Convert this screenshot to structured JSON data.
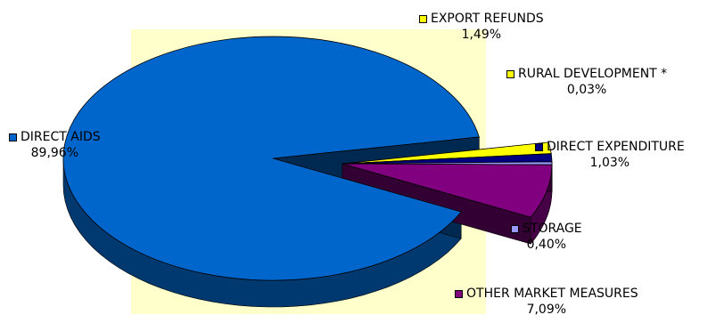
{
  "chart_data": {
    "type": "pie",
    "three_d": true,
    "exploded": true,
    "plot_area_color": "#FFFFCC",
    "slices": [
      {
        "name": "DIRECT AIDS",
        "value": 89.96,
        "label": "89,96%",
        "color": "#0066CC"
      },
      {
        "name": "OTHER MARKET MEASURES",
        "value": 7.09,
        "label": "7,09%",
        "color": "#800080"
      },
      {
        "name": "STORAGE",
        "value": 0.4,
        "label": "0,40%",
        "color": "#9999FF"
      },
      {
        "name": "DIRECT EXPENDITURE",
        "value": 1.03,
        "label": "1,03%",
        "color": "#000080"
      },
      {
        "name": "RURAL DEVELOPMENT *",
        "value": 0.03,
        "label": "0,03%",
        "color": "#FFFF00"
      },
      {
        "name": "EXPORT REFUNDS",
        "value": 1.49,
        "label": "1,49%",
        "color": "#FFFF00"
      }
    ]
  }
}
